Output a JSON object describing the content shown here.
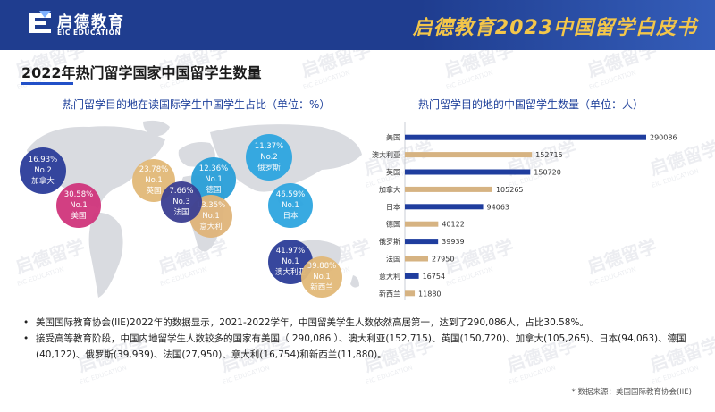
{
  "header": {
    "logo_cn": "启德教育",
    "logo_en": "EIC EDUCATION",
    "title": "启德教育2023中国留学白皮书"
  },
  "page_title": "2022年热门留学国家中国留学生数量",
  "left_subtitle": "热门留学目的地在读国际学生中国学生占比（单位：%）",
  "right_subtitle": "热门留学目的地的中国留学生数量（单位：人）",
  "watermark": {
    "cn": "启德留学",
    "en": "EIC EDUCATION"
  },
  "bubbles": [
    {
      "pct": "16.93%",
      "rank": "No.2",
      "country": "加拿大",
      "color": "#2c3d9a"
    },
    {
      "pct": "30.58%",
      "rank": "No.1",
      "country": "美国",
      "color": "#d0357c"
    },
    {
      "pct": "23.78%",
      "rank": "No.1",
      "country": "英国",
      "color": "#e2b978"
    },
    {
      "pct": "12.36%",
      "rank": "No.1",
      "country": "德国",
      "color": "#2a9fd8"
    },
    {
      "pct": "7.66%",
      "rank": "No.3",
      "country": "法国",
      "color": "#3b3f92"
    },
    {
      "pct": "13.35%",
      "rank": "No.1",
      "country": "意大利",
      "color": "#e0b57a"
    },
    {
      "pct": "11.37%",
      "rank": "No.2",
      "country": "俄罗斯",
      "color": "#2ea6e0"
    },
    {
      "pct": "46.59%",
      "rank": "No.1",
      "country": "日本",
      "color": "#2ea6e0"
    },
    {
      "pct": "41.97%",
      "rank": "No.1",
      "country": "澳大利亚",
      "color": "#2d3e98"
    },
    {
      "pct": "39.88%",
      "rank": "No.1",
      "country": "新西兰",
      "color": "#e2b978"
    }
  ],
  "chart_data": {
    "type": "bar",
    "orientation": "horizontal",
    "categories": [
      "美国",
      "澳大利亚",
      "英国",
      "加拿大",
      "日本",
      "德国",
      "俄罗斯",
      "法国",
      "意大利",
      "新西兰"
    ],
    "values": [
      290086,
      152715,
      150720,
      105265,
      94063,
      40122,
      39939,
      27950,
      16754,
      11880
    ],
    "value_labels": [
      "290086",
      "152715",
      "150720",
      "105265",
      "94063",
      "40122",
      "39939",
      "27950",
      "16754",
      "11880"
    ],
    "bar_colors": [
      "#1f3d9e",
      "#d6b382",
      "#1f3d9e",
      "#d6b382",
      "#1f3d9e",
      "#d6b382",
      "#1f3d9e",
      "#d6b382",
      "#1f3d9e",
      "#d6b382"
    ],
    "xlim": [
      0,
      290086
    ],
    "title": "热门留学目的地的中国留学生数量（单位：人）"
  },
  "notes": [
    "美国国际教育协会(IIE)2022年的数据显示，2021-2022学年，中国留美学生人数依然高居第一，达到了290,086人，占比30.58%。",
    "接受高等教育阶段，中国内地留学生人数较多的国家有美国（ 290,086 ）、澳大利亚(152,715)、英国(150,720)、加拿大(105,265)、日本(94,063)、德国(40,122)、俄罗斯(39,939)、法国(27,950)、意大利(16,754)和新西兰(11,880)。"
  ],
  "note_bullet": "•",
  "source": "* 数据来源：美国国际教育协会(IIE)"
}
